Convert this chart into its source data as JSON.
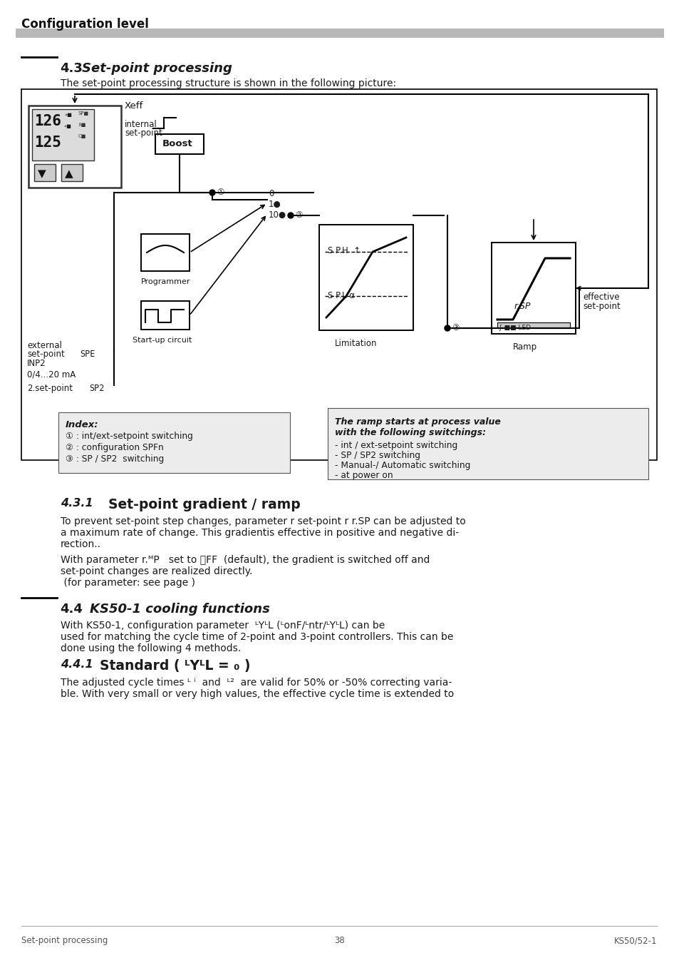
{
  "page_title": "Configuration level",
  "section_43_num": "4.3",
  "section_43_title": "Set-point processing",
  "section_43_intro": "The set-point processing structure is shown in the following picture:",
  "section_431_num": "4.3.1",
  "section_431_title": "Set-point gradient / ramp",
  "section_431_p1l1": "To prevent set-point step changes, parameter r set-point r r.SP can be adjusted to",
  "section_431_p1l2": "a maximum rate of change. This gradientis effective in positive and negative di-",
  "section_431_p1l3": "rection..",
  "section_431_p2l1": "With parameter r.ᴹP   set to ⲞFF  (default), the gradient is switched off and",
  "section_431_p2l2": "set-point changes are realized directly.",
  "section_431_p2l3": " (for parameter: see page )",
  "section_44_num": "4.4",
  "section_44_title": "KS50-1 cooling functions",
  "section_44_p1l1": "With KS50-1, configuration parameter  ᴸYᴸL (ᴸonF/ᴸntr/ᴸYᴸL) can be",
  "section_44_p1l2": "used for matching the cycle time of 2-point and 3-point controllers. This can be",
  "section_44_p1l3": "done using the following 4 methods.",
  "section_441_num": "4.4.1",
  "section_441_title": "Standard ( ᴸYᴸL = ₀ )",
  "section_441_p1l1": "The adjusted cycle times ᴸ ⁱ  and  ᴸ²  are valid for 50% or -50% correcting varia-",
  "section_441_p1l2": "ble. With very small or very high values, the effective cycle time is extended to",
  "footer_left": "Set-point processing",
  "footer_center": "38",
  "footer_right": "KS50/52-1",
  "bg_color": "#ffffff",
  "header_bar_color": "#b8b8b8"
}
